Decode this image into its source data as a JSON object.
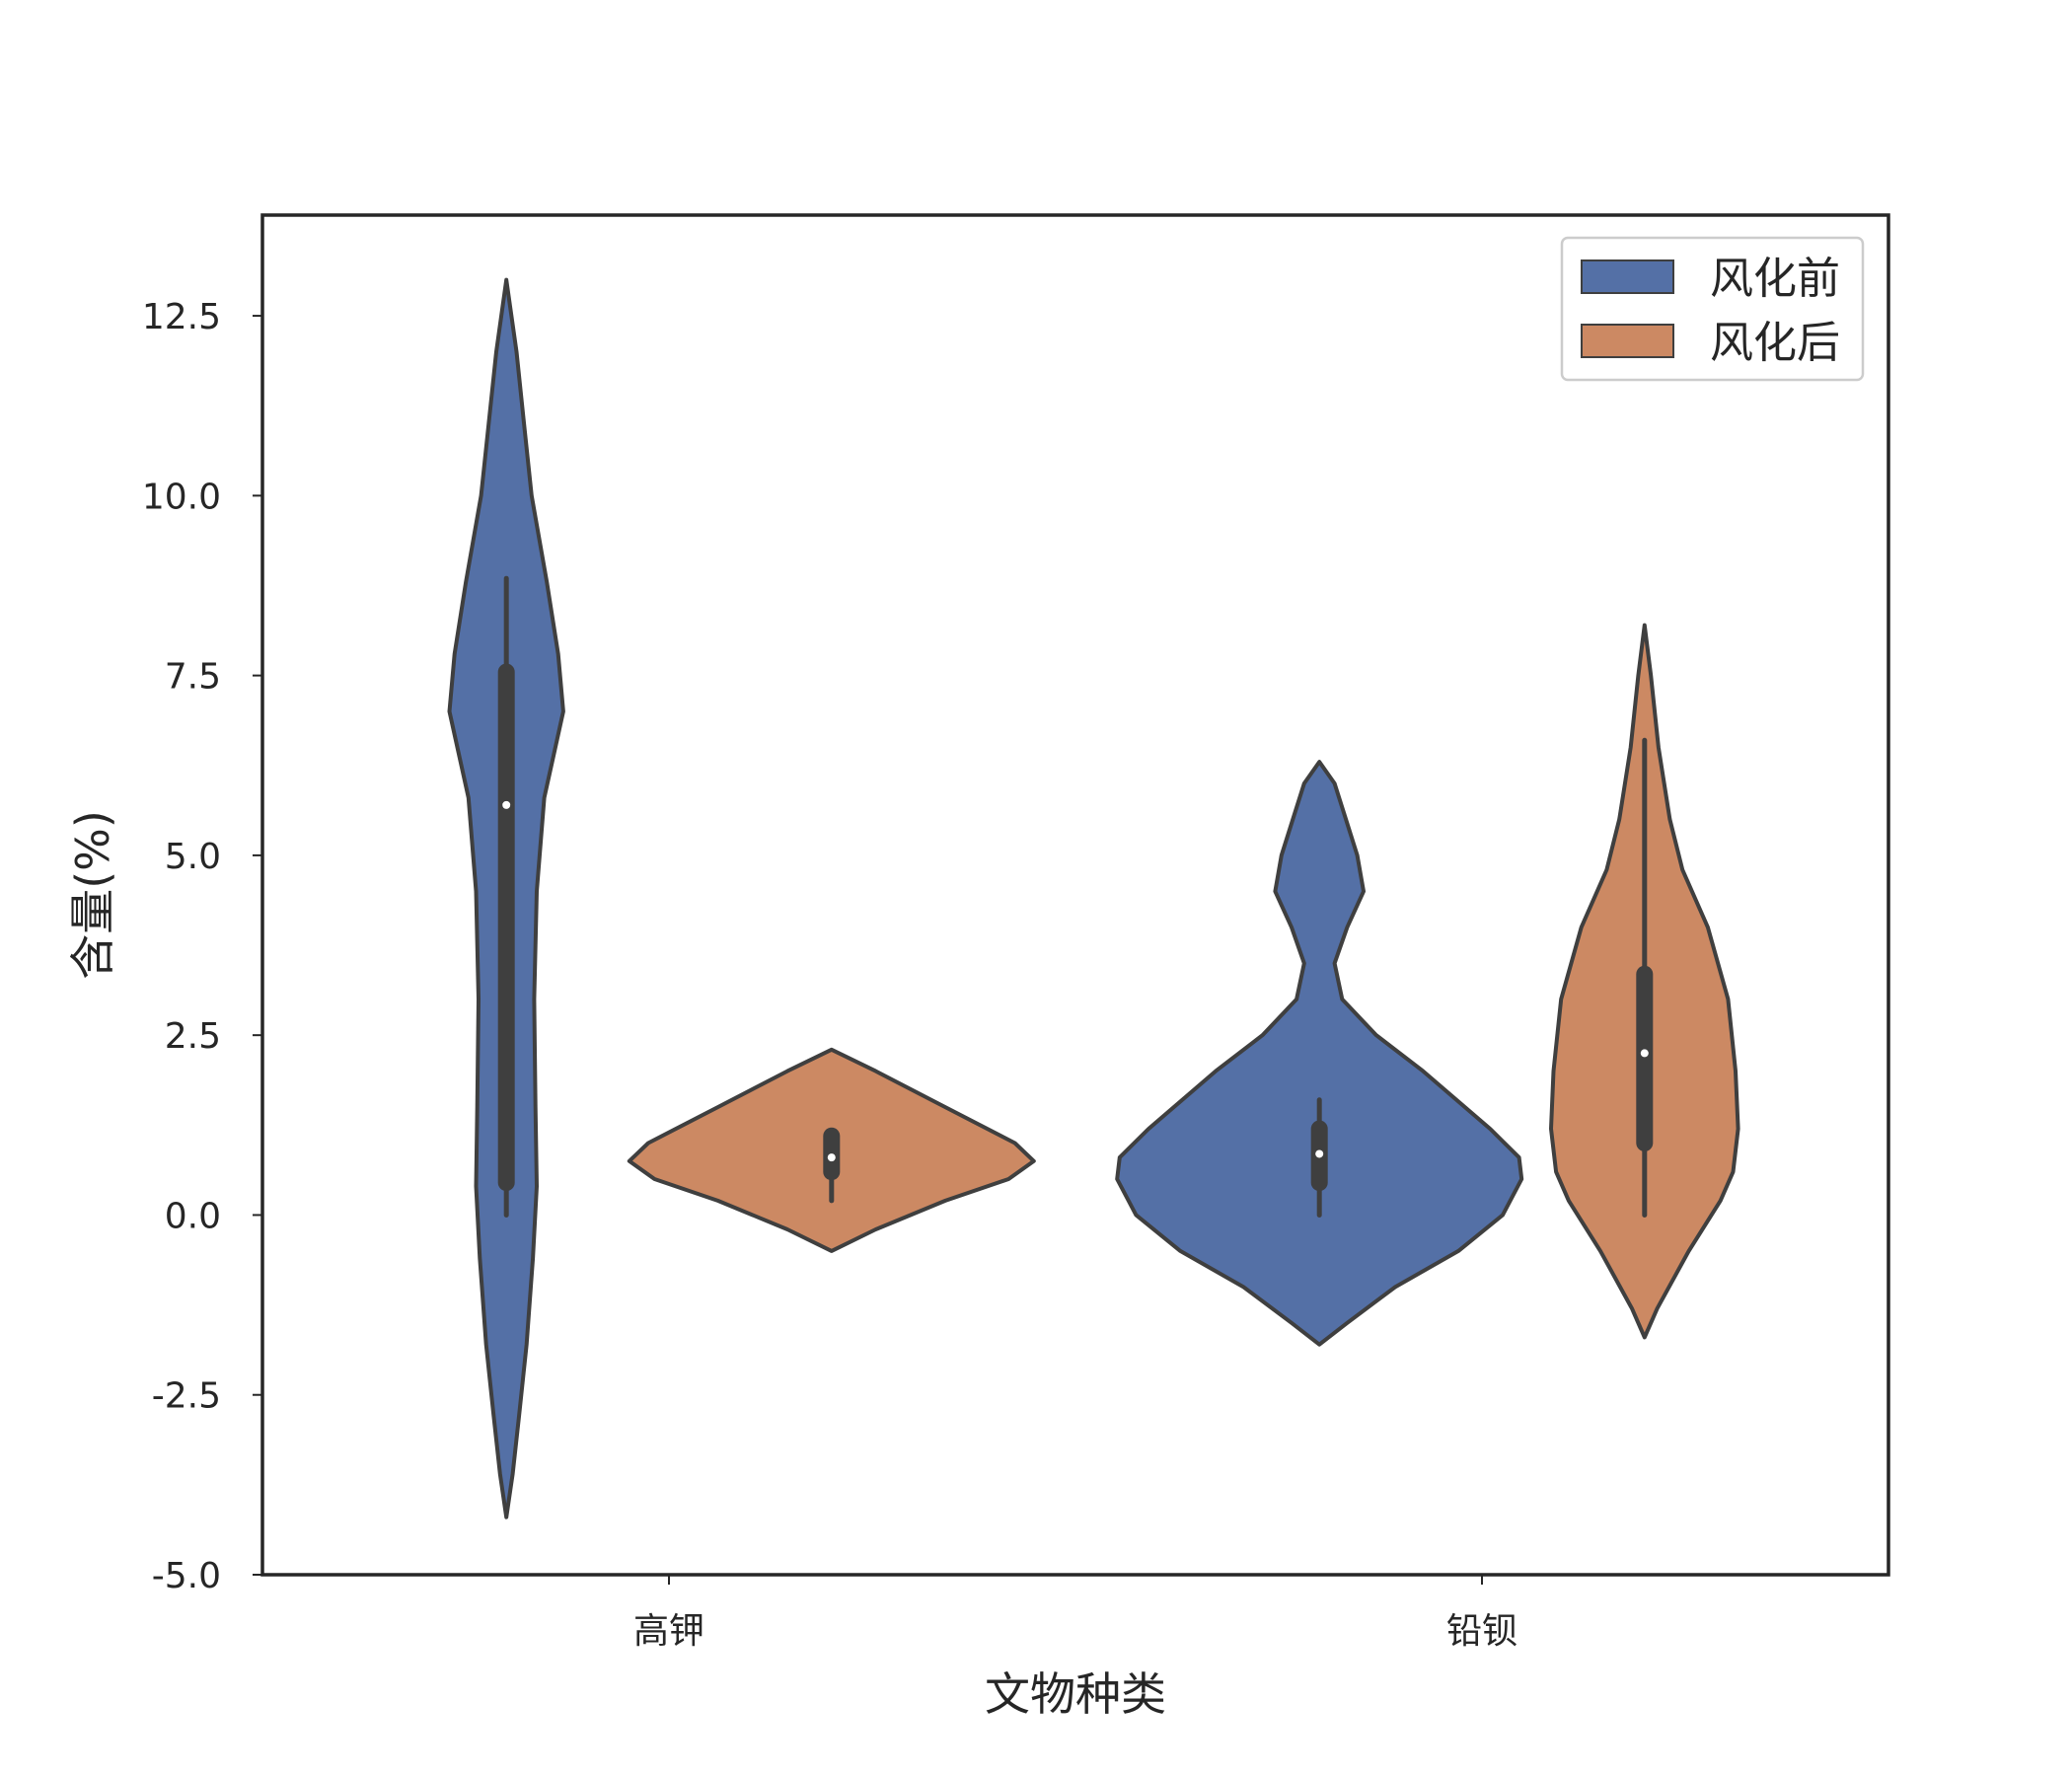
{
  "chart_data": {
    "type": "violin",
    "title": "",
    "xlabel": "文物种类",
    "ylabel": "含量(%)",
    "ylim": [
      -5.0,
      13.9
    ],
    "yticks": [
      -5.0,
      -2.5,
      0.0,
      2.5,
      5.0,
      7.5,
      10.0,
      12.5
    ],
    "ytick_labels": [
      "-5.0",
      "-2.5",
      "0.0",
      "2.5",
      "5.0",
      "7.5",
      "10.0",
      "12.5"
    ],
    "categories": [
      "高钾",
      "铅钡"
    ],
    "grid": false,
    "legend_position": "top-right",
    "series": [
      {
        "name": "风化前",
        "color": "#5470a6",
        "violins": [
          {
            "category": "高钾",
            "min": 0.0,
            "q1": 0.45,
            "median": 5.7,
            "q3": 7.55,
            "max": 8.85,
            "profile": [
              [
                -4.2,
                0.0
              ],
              [
                -3.6,
                0.05
              ],
              [
                -2.8,
                0.1
              ],
              [
                -1.8,
                0.16
              ],
              [
                -0.6,
                0.21
              ],
              [
                0.4,
                0.24
              ],
              [
                1.5,
                0.23
              ],
              [
                3.0,
                0.22
              ],
              [
                4.5,
                0.24
              ],
              [
                5.8,
                0.3
              ],
              [
                7.0,
                0.45
              ],
              [
                7.8,
                0.41
              ],
              [
                8.8,
                0.32
              ],
              [
                10.0,
                0.2
              ],
              [
                11.0,
                0.14
              ],
              [
                12.0,
                0.08
              ],
              [
                13.0,
                0.0
              ]
            ]
          },
          {
            "category": "铅钡",
            "min": 0.0,
            "q1": 0.45,
            "median": 0.85,
            "q3": 1.2,
            "max": 1.6,
            "profile": [
              [
                -1.8,
                0.0
              ],
              [
                -1.5,
                0.22
              ],
              [
                -1.0,
                0.6
              ],
              [
                -0.5,
                1.1
              ],
              [
                0.0,
                1.45
              ],
              [
                0.5,
                1.6
              ],
              [
                0.8,
                1.58
              ],
              [
                1.2,
                1.35
              ],
              [
                2.0,
                0.82
              ],
              [
                2.5,
                0.45
              ],
              [
                3.0,
                0.18
              ],
              [
                3.5,
                0.12
              ],
              [
                4.0,
                0.22
              ],
              [
                4.5,
                0.35
              ],
              [
                5.0,
                0.3
              ],
              [
                5.5,
                0.21
              ],
              [
                6.0,
                0.12
              ],
              [
                6.3,
                0.0
              ]
            ]
          }
        ]
      },
      {
        "name": "风化后",
        "color": "#cc8963",
        "violins": [
          {
            "category": "高钾",
            "min": 0.2,
            "q1": 0.6,
            "median": 0.8,
            "q3": 1.1,
            "max": 1.1,
            "profile": [
              [
                -0.5,
                0.0
              ],
              [
                -0.2,
                0.35
              ],
              [
                0.2,
                0.9
              ],
              [
                0.5,
                1.4
              ],
              [
                0.75,
                1.6
              ],
              [
                1.0,
                1.45
              ],
              [
                1.5,
                0.9
              ],
              [
                2.0,
                0.35
              ],
              [
                2.3,
                0.0
              ]
            ]
          },
          {
            "category": "铅钡",
            "min": 0.0,
            "q1": 1.0,
            "median": 2.25,
            "q3": 3.35,
            "max": 6.6,
            "profile": [
              [
                -1.7,
                0.0
              ],
              [
                -1.3,
                0.1
              ],
              [
                -0.5,
                0.35
              ],
              [
                0.2,
                0.6
              ],
              [
                0.6,
                0.7
              ],
              [
                1.2,
                0.74
              ],
              [
                2.0,
                0.72
              ],
              [
                3.0,
                0.66
              ],
              [
                4.0,
                0.5
              ],
              [
                4.8,
                0.3
              ],
              [
                5.5,
                0.2
              ],
              [
                6.5,
                0.11
              ],
              [
                7.5,
                0.05
              ],
              [
                8.2,
                0.0
              ]
            ]
          }
        ]
      }
    ]
  }
}
